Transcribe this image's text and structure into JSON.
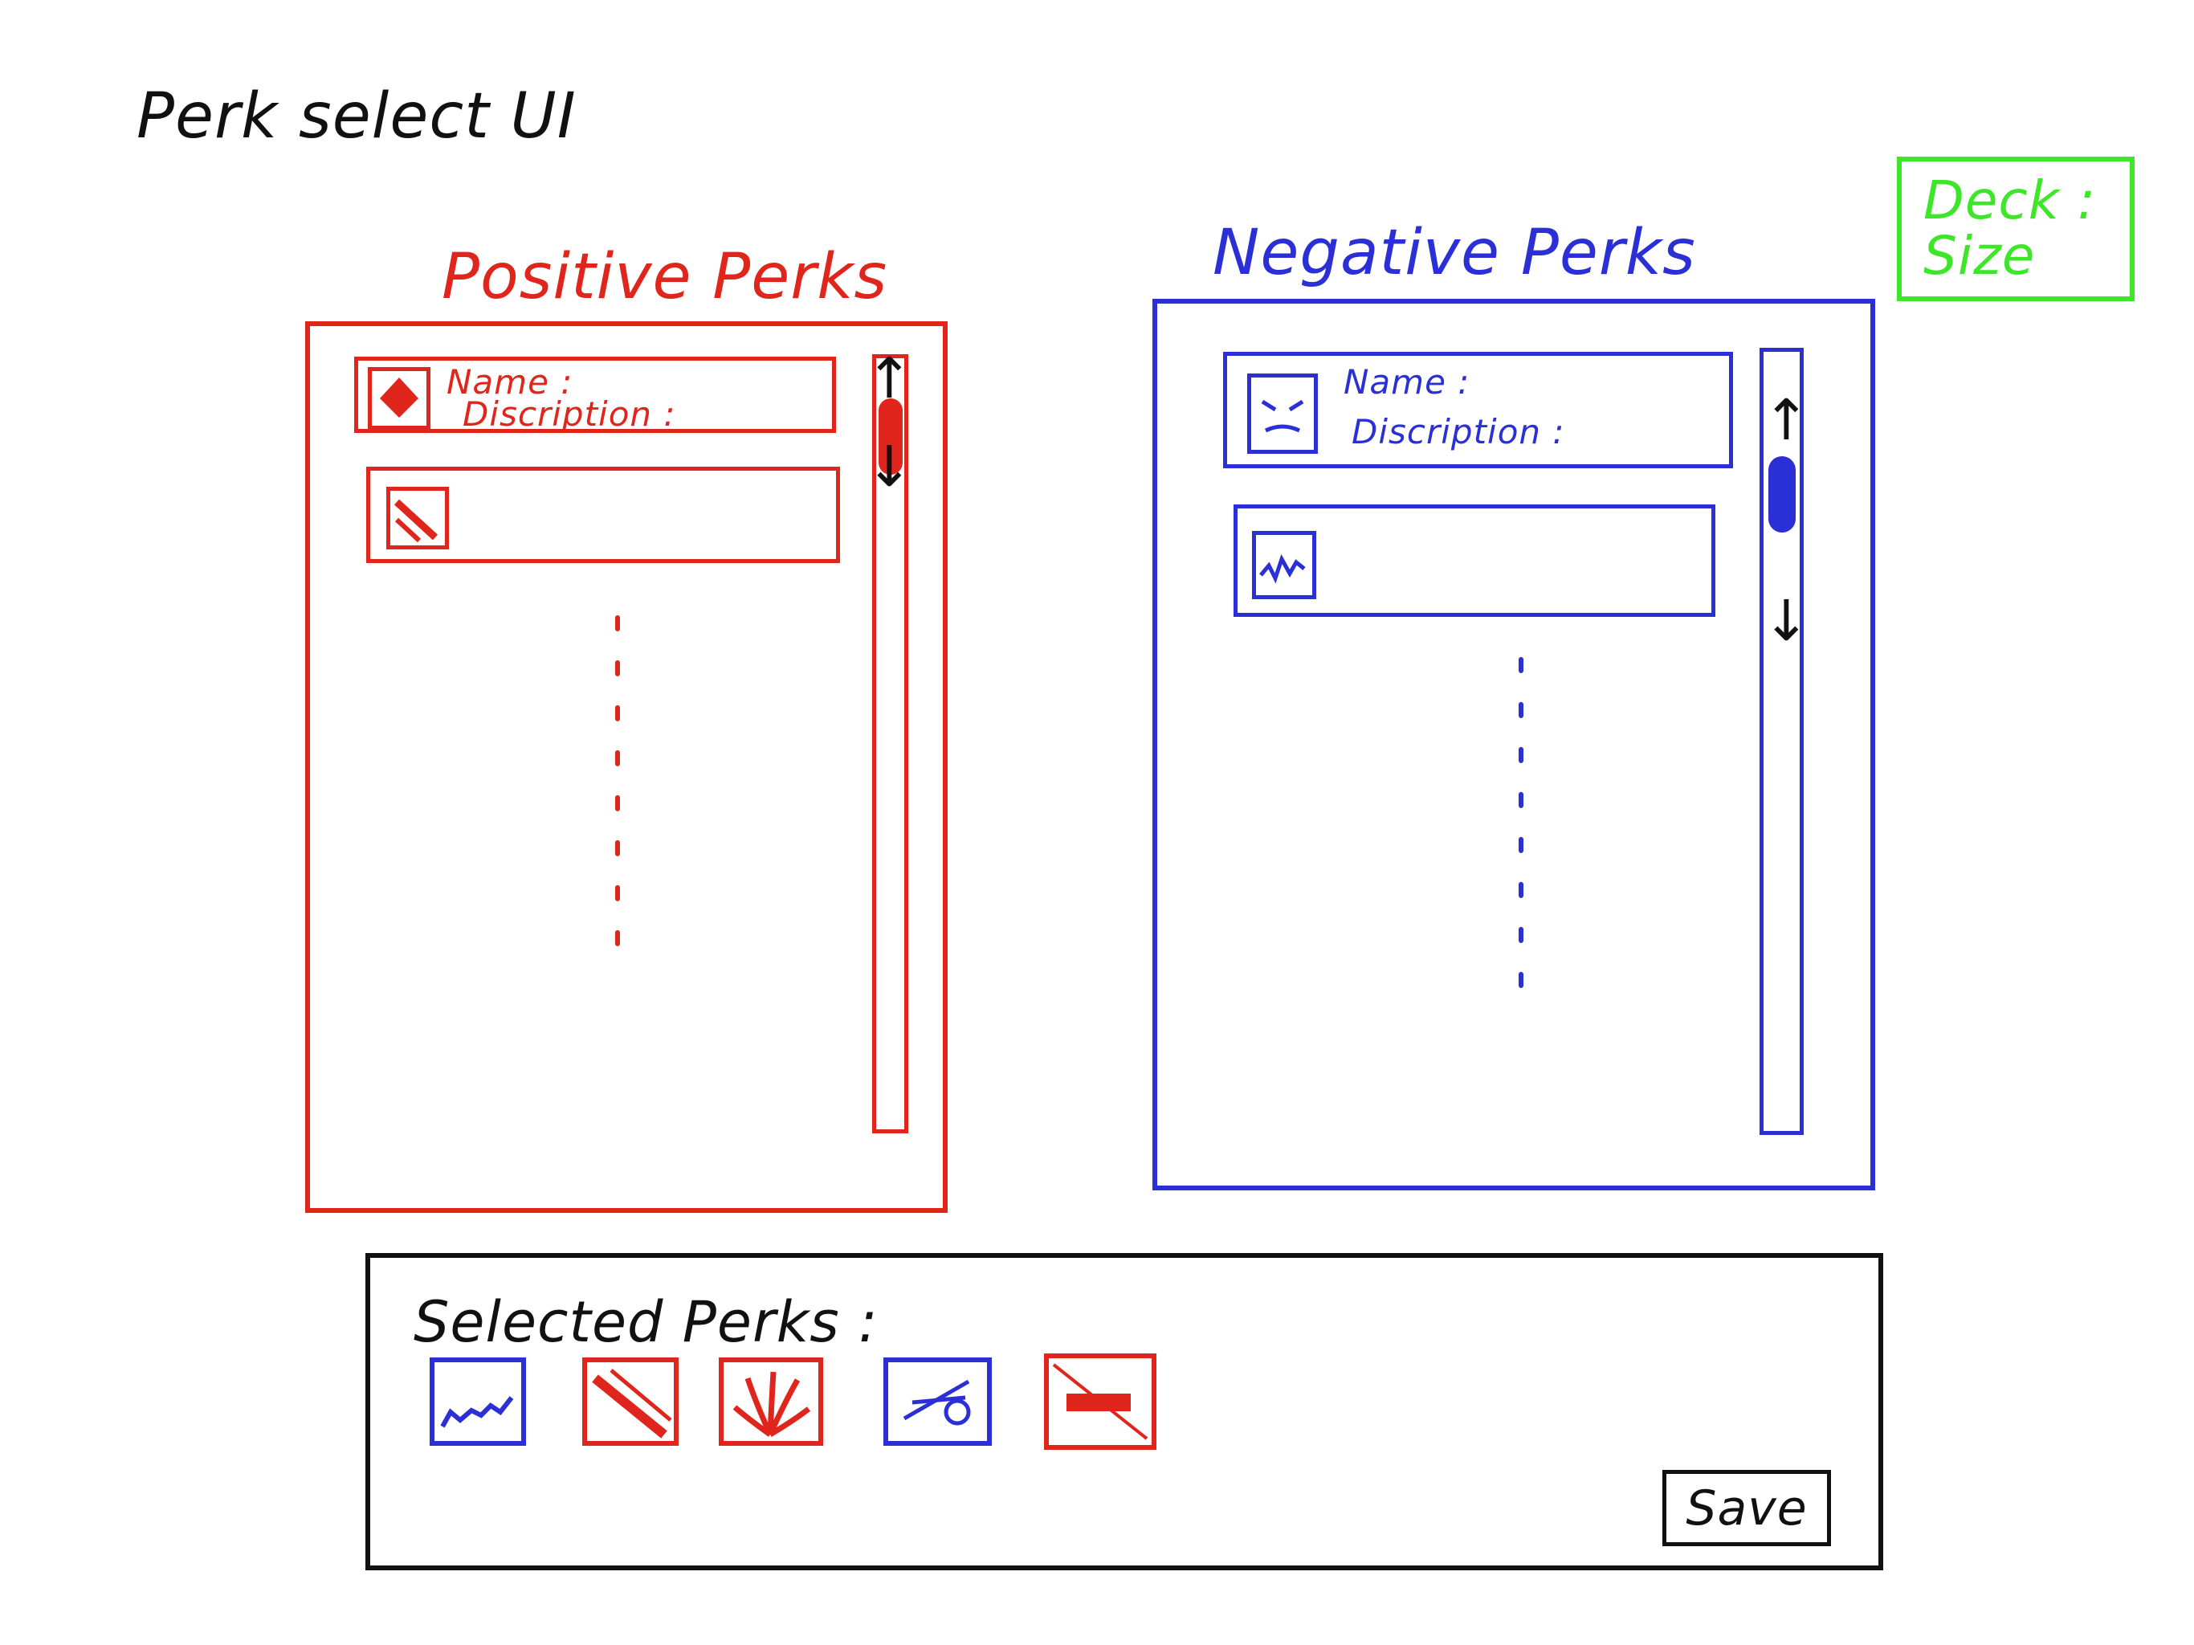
{
  "page": {
    "title": "Perk select UI"
  },
  "positive_panel": {
    "title": "Positive Perks",
    "items": [
      {
        "icon": "diamond-perk-icon",
        "name_label": "Name :",
        "description_label": "Discription :"
      },
      {
        "icon": "slash-perk-icon",
        "name_label": "",
        "description_label": ""
      }
    ]
  },
  "negative_panel": {
    "title": "Negative Perks",
    "items": [
      {
        "icon": "angry-face-perk-icon",
        "name_label": "Name :",
        "description_label": "Discription :"
      },
      {
        "icon": "wave-perk-icon",
        "name_label": "",
        "description_label": ""
      }
    ]
  },
  "deck": {
    "label_line1": "Deck :",
    "label_line2": "Size"
  },
  "selected": {
    "label": "Selected Perks :",
    "icons": [
      {
        "name": "wave-perk-icon",
        "color": "#2a2fd6"
      },
      {
        "name": "slash-perk-icon",
        "color": "#e0261c"
      },
      {
        "name": "leaf-perk-icon",
        "color": "#e0261c"
      },
      {
        "name": "strike-perk-icon",
        "color": "#2a2fd6"
      },
      {
        "name": "bar-perk-icon",
        "color": "#e0261c"
      }
    ],
    "save_label": "Save"
  },
  "colors": {
    "positive": "#e0261c",
    "negative": "#2a2fd6",
    "deck": "#3ee62a",
    "ink": "#111111"
  }
}
